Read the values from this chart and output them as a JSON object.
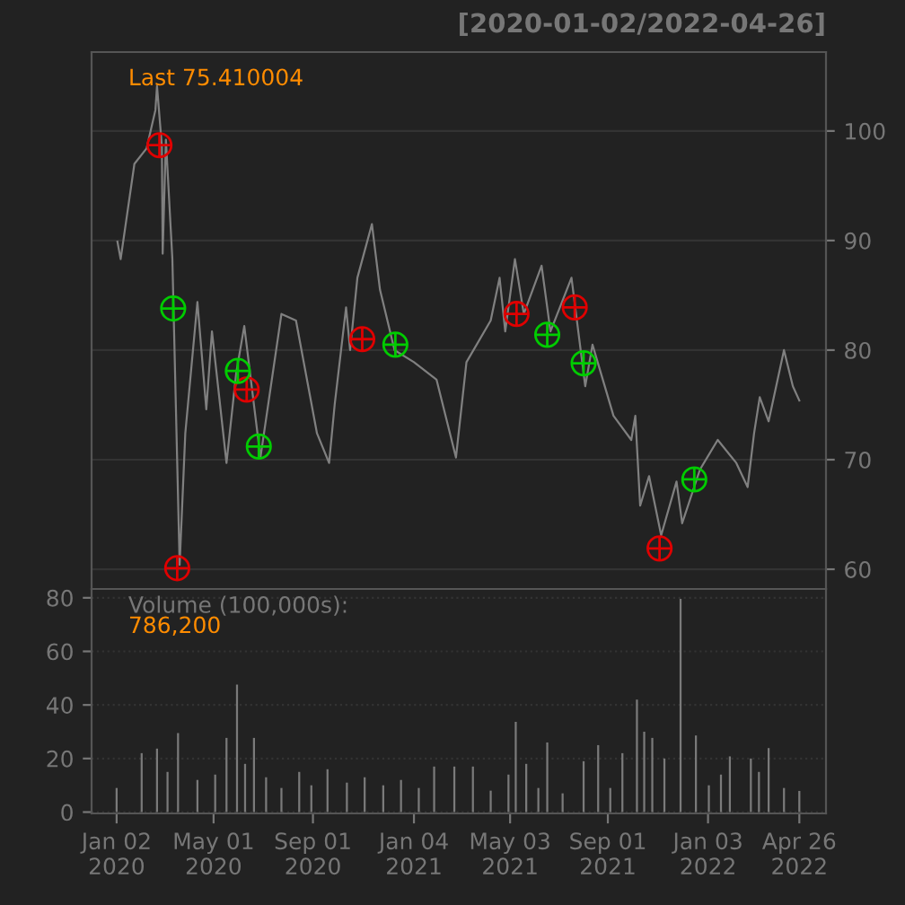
{
  "chart_data": [
    {
      "type": "line",
      "title": "[2020-01-02/2022-04-26]",
      "annotations": [
        "Last 75.410004"
      ],
      "tick_labels": "y",
      "grid": "y",
      "xlim": [
        "2019-12-02",
        "2022-05-29"
      ],
      "ylim": [
        58.2,
        107.2
      ],
      "yticks": [
        60,
        70,
        80,
        90,
        100
      ],
      "series": [
        {
          "type": "line",
          "color": "#808080",
          "marker": "none",
          "line_style": "solid",
          "x": [
            "2020-01-03",
            "2020-01-07",
            "2020-01-24",
            "2020-02-08",
            "2020-02-19",
            "2020-02-21",
            "2020-02-27",
            "2020-02-28",
            "2020-03-03",
            "2020-03-11",
            "2020-03-20",
            "2020-03-27",
            "2020-04-11",
            "2020-04-22",
            "2020-04-29",
            "2020-05-17",
            "2020-05-29",
            "2020-06-08",
            "2020-06-28",
            "2020-07-24",
            "2020-08-11",
            "2020-09-06",
            "2020-09-21",
            "2020-09-28",
            "2020-10-12",
            "2020-10-17",
            "2020-10-26",
            "2020-11-13",
            "2020-11-23",
            "2020-12-11",
            "2021-01-04",
            "2021-02-01",
            "2021-02-25",
            "2021-03-10",
            "2021-04-09",
            "2021-04-20",
            "2021-04-27",
            "2021-05-09",
            "2021-05-20",
            "2021-06-11",
            "2021-06-22",
            "2021-07-18",
            "2021-08-04",
            "2021-08-13",
            "2021-09-08",
            "2021-09-30",
            "2021-10-05",
            "2021-10-11",
            "2021-10-22",
            "2021-11-06",
            "2021-11-25",
            "2021-12-02",
            "2021-12-24",
            "2022-01-15",
            "2022-02-07",
            "2022-02-21",
            "2022-03-01",
            "2022-03-08",
            "2022-03-19",
            "2022-04-07",
            "2022-04-18",
            "2022-04-26"
          ],
          "values": [
            89.9,
            88.3,
            97.0,
            98.4,
            101.9,
            104.1,
            98.6,
            88.8,
            99.2,
            88.3,
            60.4,
            72.4,
            84.4,
            74.6,
            81.7,
            69.7,
            77.9,
            82.2,
            70.2,
            83.3,
            82.7,
            72.4,
            69.7,
            75.1,
            83.9,
            80.0,
            86.6,
            91.5,
            85.5,
            80.0,
            78.9,
            77.3,
            70.2,
            78.9,
            82.7,
            86.6,
            81.7,
            88.3,
            83.3,
            87.7,
            81.7,
            86.6,
            76.7,
            80.5,
            74.0,
            71.8,
            74.0,
            65.8,
            68.5,
            63.1,
            68.0,
            64.2,
            69.1,
            71.8,
            69.7,
            67.5,
            72.4,
            75.7,
            73.5,
            80.0,
            76.7,
            75.4
          ]
        },
        {
          "type": "scatter",
          "color": "#e00000",
          "marker": "cross",
          "x": [
            "2020-02-24",
            "2020-03-17",
            "2020-06-11",
            "2020-11-01",
            "2021-05-11",
            "2021-07-22",
            "2021-11-04"
          ],
          "values": [
            98.7,
            60.1,
            76.4,
            81.0,
            83.3,
            83.9,
            61.9
          ]
        },
        {
          "type": "scatter",
          "color": "#00cc00",
          "marker": "cross",
          "x": [
            "2020-03-12",
            "2020-05-31",
            "2020-06-26",
            "2020-12-12",
            "2021-06-18",
            "2021-08-02",
            "2021-12-17"
          ],
          "values": [
            83.8,
            78.1,
            71.2,
            80.5,
            81.4,
            78.8,
            68.2
          ]
        }
      ]
    },
    {
      "type": "bar",
      "annotations": [
        "Volume (100,000s):",
        "786,200"
      ],
      "grid": "y",
      "xlim": [
        "2019-12-02",
        "2022-05-29"
      ],
      "ylim": [
        -0.5,
        83.3
      ],
      "yticks": [
        0,
        20,
        40,
        60,
        80
      ],
      "xticks": [
        {
          "value": "2020-01-02",
          "label": "Jan 02\n2020"
        },
        {
          "value": "2020-05-01",
          "label": "May 01\n2020"
        },
        {
          "value": "2020-09-01",
          "label": "Sep 01\n2020"
        },
        {
          "value": "2021-01-04",
          "label": "Jan 04\n2021"
        },
        {
          "value": "2021-05-03",
          "label": "May 03\n2021"
        },
        {
          "value": "2021-09-01",
          "label": "Sep 01\n2021"
        },
        {
          "value": "2022-01-03",
          "label": "Jan 03\n2022"
        },
        {
          "value": "2022-04-26",
          "label": "Apr 26\n2022"
        }
      ],
      "series": [
        {
          "color": "#7a7a7a",
          "x": [
            "2020-01-02",
            "2020-02-02",
            "2020-02-21",
            "2020-03-05",
            "2020-03-18",
            "2020-04-11",
            "2020-05-03",
            "2020-05-17",
            "2020-05-30",
            "2020-06-09",
            "2020-06-20",
            "2020-07-05",
            "2020-07-24",
            "2020-08-15",
            "2020-08-30",
            "2020-09-19",
            "2020-10-13",
            "2020-11-04",
            "2020-11-27",
            "2020-12-19",
            "2021-01-10",
            "2021-01-29",
            "2021-02-23",
            "2021-03-18",
            "2021-04-09",
            "2021-05-01",
            "2021-05-10",
            "2021-05-23",
            "2021-06-07",
            "2021-06-18",
            "2021-07-07",
            "2021-08-02",
            "2021-08-20",
            "2021-09-04",
            "2021-09-19",
            "2021-10-07",
            "2021-10-16",
            "2021-10-26",
            "2021-11-10",
            "2021-11-30",
            "2021-12-19",
            "2022-01-04",
            "2022-01-19",
            "2022-01-30",
            "2022-02-25",
            "2022-03-07",
            "2022-03-19",
            "2022-04-07",
            "2022-04-26"
          ],
          "values": [
            9,
            22,
            23.7,
            15,
            29.5,
            12,
            14,
            27.7,
            47.6,
            18,
            27.7,
            13,
            9,
            15,
            10,
            16,
            11,
            13,
            10,
            12,
            9,
            17,
            17,
            17,
            8,
            14,
            33.7,
            18,
            9,
            26,
            7,
            19,
            25,
            9,
            22,
            42,
            30,
            27.7,
            20,
            79.6,
            28.6,
            10,
            14,
            20.8,
            20,
            15,
            23.9,
            9,
            7.9
          ]
        }
      ]
    }
  ]
}
